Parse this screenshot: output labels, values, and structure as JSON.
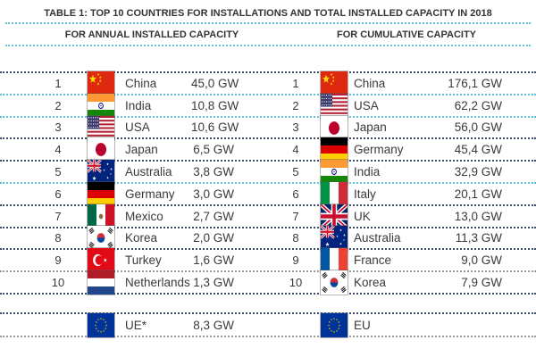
{
  "title": "TABLE 1: TOP 10 COUNTRIES FOR INSTALLATIONS AND TOTAL INSTALLED CAPACITY IN 2018",
  "chart_data": [
    {
      "type": "table",
      "title": "FOR ANNUAL INSTALLED CAPACITY",
      "unit": "GW",
      "rows": [
        {
          "rank": "1",
          "flag": "china",
          "country": "China",
          "value": "45,0 GW"
        },
        {
          "rank": "2",
          "flag": "india",
          "country": "India",
          "value": "10,8 GW"
        },
        {
          "rank": "3",
          "flag": "usa",
          "country": "USA",
          "value": "10,6 GW"
        },
        {
          "rank": "4",
          "flag": "japan",
          "country": "Japan",
          "value": "6,5 GW"
        },
        {
          "rank": "5",
          "flag": "australia",
          "country": "Australia",
          "value": "3,8 GW"
        },
        {
          "rank": "6",
          "flag": "germany",
          "country": "Germany",
          "value": "3,0 GW"
        },
        {
          "rank": "7",
          "flag": "mexico",
          "country": "Mexico",
          "value": "2,7 GW"
        },
        {
          "rank": "8",
          "flag": "korea",
          "country": "Korea",
          "value": "2,0 GW"
        },
        {
          "rank": "9",
          "flag": "turkey",
          "country": "Turkey",
          "value": "1,6 GW"
        },
        {
          "rank": "10",
          "flag": "netherlands",
          "country": "Netherlands",
          "value": "1,3 GW"
        }
      ],
      "footer": {
        "rank": "",
        "flag": "eu",
        "country": "UE*",
        "value": "8,3 GW"
      }
    },
    {
      "type": "table",
      "title": "FOR CUMULATIVE CAPACITY",
      "unit": "GW",
      "rows": [
        {
          "rank": "1",
          "flag": "china",
          "country": "China",
          "value": "176,1 GW"
        },
        {
          "rank": "2",
          "flag": "usa",
          "country": "USA",
          "value": "62,2 GW"
        },
        {
          "rank": "3",
          "flag": "japan",
          "country": "Japan",
          "value": "56,0 GW"
        },
        {
          "rank": "4",
          "flag": "germany",
          "country": "Germany",
          "value": "45,4 GW"
        },
        {
          "rank": "5",
          "flag": "india",
          "country": "India",
          "value": "32,9 GW"
        },
        {
          "rank": "6",
          "flag": "italy",
          "country": "Italy",
          "value": "20,1 GW"
        },
        {
          "rank": "7",
          "flag": "uk",
          "country": "UK",
          "value": "13,0 GW"
        },
        {
          "rank": "8",
          "flag": "australia",
          "country": "Australia",
          "value": "11,3 GW"
        },
        {
          "rank": "9",
          "flag": "france",
          "country": "France",
          "value": "9,0 GW"
        },
        {
          "rank": "10",
          "flag": "korea",
          "country": "Korea",
          "value": "7,9 GW"
        }
      ],
      "footer": {
        "rank": "",
        "flag": "eu",
        "country": "EU",
        "value": ""
      }
    }
  ],
  "colors": {
    "line_cyan": "#5fc3df",
    "line_navy": "#3d4a6b",
    "line_gray": "#9a9a9a",
    "text": "#3a3a3a"
  }
}
